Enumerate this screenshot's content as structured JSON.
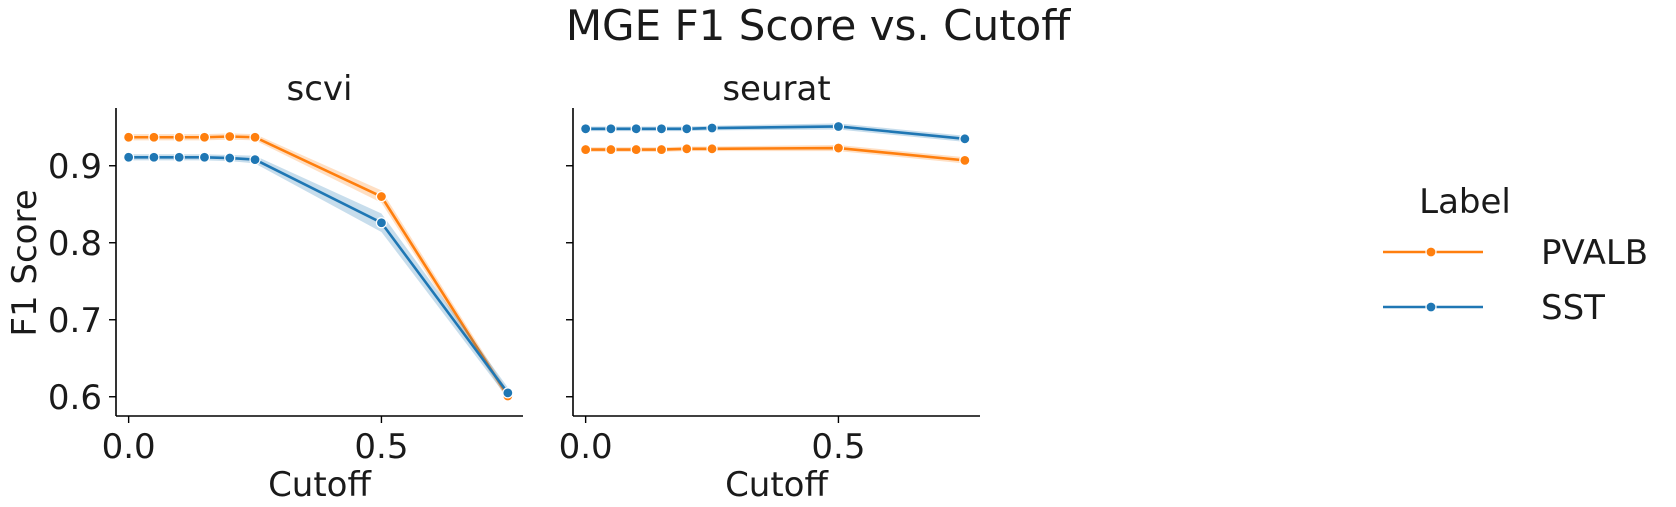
{
  "chart_data": {
    "type": "line",
    "title": "MGE F1 Score vs. Cutoff",
    "ylabel": "F1 Score",
    "ylim": [
      0.575,
      0.975
    ],
    "y_ticks": [
      0.6,
      0.7,
      0.8,
      0.9
    ],
    "y_tick_labels": [
      "0.6",
      "0.7",
      "0.8",
      "0.9"
    ],
    "xlim": [
      -0.025,
      0.78
    ],
    "x_ticks": [
      0.0,
      0.5
    ],
    "x_tick_labels": [
      "0.0",
      "0.5"
    ],
    "grid": false,
    "legend": {
      "title": "Label",
      "placement": "right",
      "entries": [
        "PVALB",
        "SST"
      ]
    },
    "colors": {
      "PVALB": "#ff7f0e",
      "SST": "#1f77b4"
    },
    "panels": [
      {
        "title": "scvi",
        "xlabel": "Cutoff",
        "series": [
          {
            "name": "PVALB",
            "x": [
              0.0,
              0.05,
              0.1,
              0.15,
              0.2,
              0.25,
              0.5,
              0.75
            ],
            "y": [
              0.937,
              0.937,
              0.937,
              0.937,
              0.938,
              0.937,
              0.86,
              0.601
            ],
            "band": [
              0.004,
              0.004,
              0.004,
              0.004,
              0.004,
              0.004,
              0.008,
              0.006
            ]
          },
          {
            "name": "SST",
            "x": [
              0.0,
              0.05,
              0.1,
              0.15,
              0.2,
              0.25,
              0.5,
              0.75
            ],
            "y": [
              0.911,
              0.911,
              0.911,
              0.911,
              0.91,
              0.908,
              0.826,
              0.605
            ],
            "band": [
              0.004,
              0.004,
              0.004,
              0.004,
              0.004,
              0.005,
              0.012,
              0.007
            ]
          }
        ]
      },
      {
        "title": "seurat",
        "xlabel": "Cutoff",
        "series": [
          {
            "name": "PVALB",
            "x": [
              0.0,
              0.05,
              0.1,
              0.15,
              0.2,
              0.25,
              0.5,
              0.75
            ],
            "y": [
              0.921,
              0.921,
              0.921,
              0.921,
              0.922,
              0.922,
              0.923,
              0.907
            ],
            "band": [
              0.003,
              0.003,
              0.003,
              0.003,
              0.003,
              0.003,
              0.004,
              0.004
            ]
          },
          {
            "name": "SST",
            "x": [
              0.0,
              0.05,
              0.1,
              0.15,
              0.2,
              0.25,
              0.5,
              0.75
            ],
            "y": [
              0.948,
              0.948,
              0.948,
              0.948,
              0.948,
              0.949,
              0.951,
              0.935
            ],
            "band": [
              0.003,
              0.003,
              0.003,
              0.003,
              0.003,
              0.003,
              0.004,
              0.004
            ]
          }
        ]
      }
    ]
  }
}
